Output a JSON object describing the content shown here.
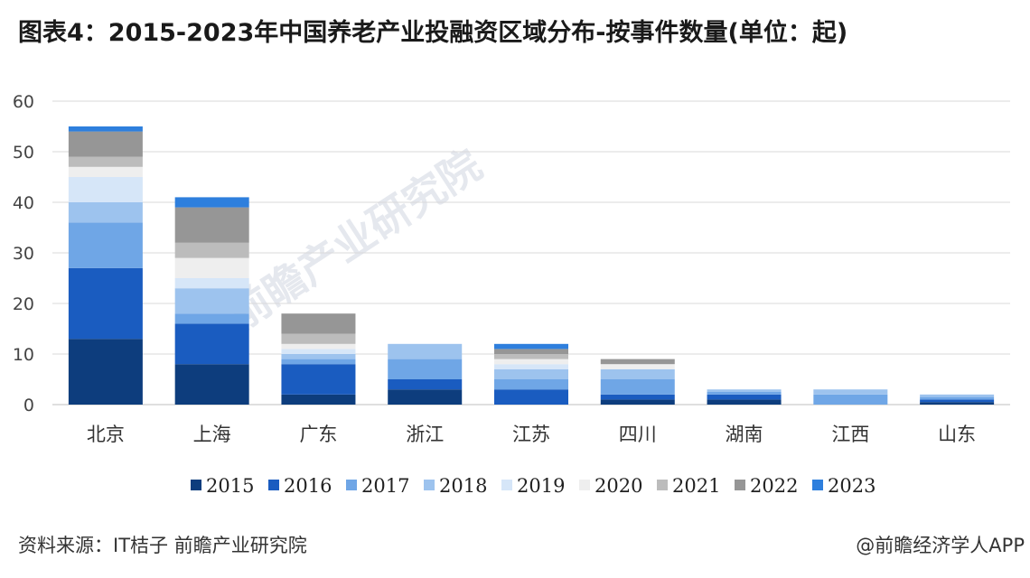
{
  "title": "图表4：2015-2023年中国养老产业投融资区域分布-按事件数量(单位：起)",
  "source": "资料来源：IT桔子 前瞻产业研究院",
  "credit": "@前瞻经济学人APP",
  "watermark": "前瞻产业研究院",
  "colors": {
    "2015": "#0d3d7d",
    "2016": "#1a5cc0",
    "2017": "#6fa6e6",
    "2018": "#9dc3ee",
    "2019": "#d6e6f8",
    "2020": "#eeeeee",
    "2021": "#bcbcbc",
    "2022": "#969696",
    "2023": "#2e7fdd",
    "grid": "#d9d9d9",
    "axis": "#bfbfbf"
  },
  "chart_data": {
    "type": "bar",
    "stacked": true,
    "categories": [
      "北京",
      "上海",
      "广东",
      "浙江",
      "江苏",
      "四川",
      "湖南",
      "江西",
      "山东"
    ],
    "ylim": [
      0,
      60
    ],
    "yticks": [
      0,
      10,
      20,
      30,
      40,
      50,
      60
    ],
    "grid": true,
    "legend_position": "bottom",
    "series": [
      {
        "name": "2015",
        "values": [
          13,
          8,
          2,
          3,
          0,
          1,
          1,
          0,
          0.5
        ]
      },
      {
        "name": "2016",
        "values": [
          14,
          8,
          6,
          2,
          3,
          1,
          1,
          0,
          0.5
        ]
      },
      {
        "name": "2017",
        "values": [
          9,
          2,
          1,
          4,
          2,
          3,
          0.5,
          2,
          0.5
        ]
      },
      {
        "name": "2018",
        "values": [
          4,
          5,
          1,
          3,
          2,
          2,
          0.5,
          1,
          0.5
        ]
      },
      {
        "name": "2019",
        "values": [
          5,
          2,
          1,
          0,
          1,
          0,
          0,
          0,
          0
        ]
      },
      {
        "name": "2020",
        "values": [
          2,
          4,
          1,
          0,
          1,
          1,
          0,
          0,
          0
        ]
      },
      {
        "name": "2021",
        "values": [
          2,
          3,
          2,
          0,
          1,
          0,
          0,
          0,
          0
        ]
      },
      {
        "name": "2022",
        "values": [
          5,
          7,
          4,
          0,
          1,
          1,
          0,
          0,
          0
        ]
      },
      {
        "name": "2023",
        "values": [
          1,
          2,
          0,
          0,
          1,
          0,
          0,
          0,
          0
        ]
      }
    ]
  }
}
